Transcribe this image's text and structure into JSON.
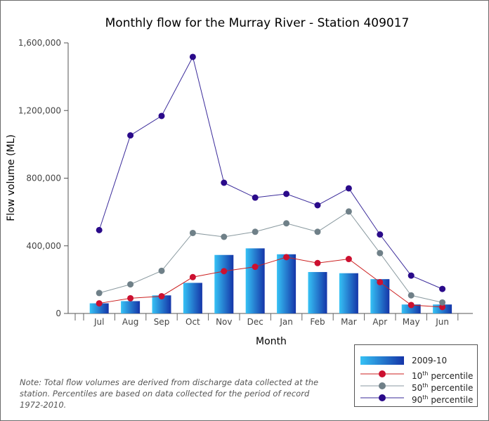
{
  "chart_data": {
    "type": "bar",
    "title": "Monthly flow for the Murray River - Station 409017",
    "xlabel": "Month",
    "ylabel": "Flow volume (ML)",
    "ylim": [
      0,
      1600000
    ],
    "yticks": [
      0,
      400000,
      800000,
      1200000,
      1600000
    ],
    "ytick_labels": [
      "0",
      "400,000",
      "800,000",
      "1,200,000",
      "1,600,000"
    ],
    "categories": [
      "Jul",
      "Aug",
      "Sep",
      "Oct",
      "Nov",
      "Dec",
      "Jan",
      "Feb",
      "Mar",
      "Apr",
      "May",
      "Jun"
    ],
    "bars": {
      "name": "2009-10",
      "values": [
        60000,
        73000,
        107000,
        181000,
        346000,
        385000,
        350000,
        245000,
        238000,
        203000,
        53000,
        53000
      ]
    },
    "lines": [
      {
        "name": "10th percentile",
        "values": [
          60000,
          90000,
          102000,
          215000,
          250000,
          276000,
          333000,
          298000,
          322000,
          185000,
          50000,
          38000
        ]
      },
      {
        "name": "50th percentile",
        "values": [
          121000,
          172000,
          252000,
          476000,
          453000,
          483000,
          533000,
          483000,
          603000,
          357000,
          107000,
          65000
        ]
      },
      {
        "name": "90th percentile",
        "values": [
          493000,
          1053000,
          1168000,
          1517000,
          773000,
          685000,
          707000,
          640000,
          740000,
          467000,
          224000,
          145000
        ]
      }
    ],
    "legend_position": "bottom-right",
    "grid": false
  },
  "legend": {
    "items": [
      {
        "label": "2009-10",
        "base": "",
        "sup": ""
      },
      {
        "label": "",
        "base": "10",
        "sup": "th",
        "rest": " percentile"
      },
      {
        "label": "",
        "base": "50",
        "sup": "th",
        "rest": " percentile"
      },
      {
        "label": "",
        "base": "90",
        "sup": "th",
        "rest": " percentile"
      }
    ]
  },
  "note": {
    "text": "Note: Total flow volumes are derived from discharge data collected at the station. Percentiles are based on data collected for the period of record 1972-2010."
  },
  "colors": {
    "bar_light": "#33b8f0",
    "bar_dark": "#1a3fb0",
    "p10": "#cc1030",
    "p50": "#6f8088",
    "p90": "#2a0a8a",
    "p10_line": "#cc2020",
    "p50_line": "#8a9aa0",
    "p90_line": "#3a2a9a"
  }
}
